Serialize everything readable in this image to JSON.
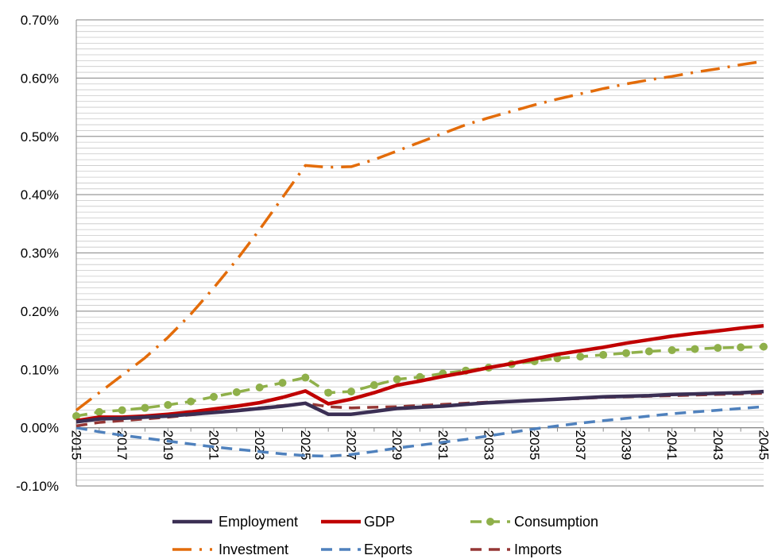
{
  "chart_data": {
    "type": "line",
    "title": "",
    "xlabel": "",
    "ylabel": "",
    "x": [
      2015,
      2016,
      2017,
      2018,
      2019,
      2020,
      2021,
      2022,
      2023,
      2024,
      2025,
      2026,
      2027,
      2028,
      2029,
      2030,
      2031,
      2032,
      2033,
      2034,
      2035,
      2036,
      2037,
      2038,
      2039,
      2040,
      2041,
      2042,
      2043,
      2044,
      2045
    ],
    "x_tick_labels": [
      "2015",
      "2017",
      "2019",
      "2021",
      "2023",
      "2025",
      "2027",
      "2029",
      "2031",
      "2033",
      "2035",
      "2037",
      "2039",
      "2041",
      "2043",
      "2045"
    ],
    "x_tick_values": [
      2015,
      2017,
      2019,
      2021,
      2023,
      2025,
      2027,
      2029,
      2031,
      2033,
      2035,
      2037,
      2039,
      2041,
      2043,
      2045
    ],
    "ylim": [
      -0.1,
      0.7
    ],
    "y_tick_values": [
      -0.1,
      0.0,
      0.1,
      0.2,
      0.3,
      0.4,
      0.5,
      0.6,
      0.7
    ],
    "y_tick_labels": [
      "-0.10%",
      "0.00%",
      "0.10%",
      "0.20%",
      "0.30%",
      "0.40%",
      "0.50%",
      "0.60%",
      "0.70%"
    ],
    "grid": true,
    "legend_position": "bottom",
    "series": [
      {
        "name": "Employment",
        "color": "#3b2f54",
        "style": "solid",
        "marker": "none",
        "values": [
          0.01,
          0.015,
          0.016,
          0.018,
          0.02,
          0.023,
          0.026,
          0.029,
          0.033,
          0.037,
          0.042,
          0.023,
          0.023,
          0.028,
          0.033,
          0.035,
          0.037,
          0.04,
          0.043,
          0.045,
          0.047,
          0.049,
          0.051,
          0.053,
          0.054,
          0.055,
          0.057,
          0.058,
          0.059,
          0.06,
          0.062
        ]
      },
      {
        "name": "GDP",
        "color": "#c00000",
        "style": "solid",
        "marker": "none",
        "values": [
          0.012,
          0.018,
          0.018,
          0.02,
          0.023,
          0.027,
          0.032,
          0.037,
          0.043,
          0.052,
          0.063,
          0.041,
          0.049,
          0.06,
          0.073,
          0.08,
          0.088,
          0.095,
          0.103,
          0.11,
          0.118,
          0.126,
          0.132,
          0.138,
          0.145,
          0.151,
          0.157,
          0.162,
          0.166,
          0.171,
          0.175
        ]
      },
      {
        "name": "Consumption",
        "color": "#8fb04a",
        "style": "dashed",
        "marker": "circle",
        "values": [
          0.02,
          0.027,
          0.03,
          0.034,
          0.039,
          0.045,
          0.053,
          0.061,
          0.069,
          0.077,
          0.086,
          0.06,
          0.062,
          0.073,
          0.083,
          0.087,
          0.093,
          0.098,
          0.103,
          0.109,
          0.114,
          0.119,
          0.122,
          0.125,
          0.128,
          0.131,
          0.133,
          0.135,
          0.137,
          0.138,
          0.139
        ]
      },
      {
        "name": "Investment",
        "color": "#e36c0a",
        "style": "dashdot",
        "marker": "none",
        "values": [
          0.03,
          0.06,
          0.09,
          0.12,
          0.155,
          0.195,
          0.24,
          0.288,
          0.34,
          0.395,
          0.45,
          0.447,
          0.448,
          0.46,
          0.475,
          0.49,
          0.505,
          0.52,
          0.532,
          0.543,
          0.554,
          0.564,
          0.573,
          0.582,
          0.59,
          0.597,
          0.603,
          0.61,
          0.616,
          0.623,
          0.629
        ]
      },
      {
        "name": "Exports",
        "color": "#4f81bd",
        "style": "dashed",
        "marker": "none",
        "values": [
          0.0,
          -0.007,
          -0.013,
          -0.018,
          -0.023,
          -0.028,
          -0.033,
          -0.037,
          -0.041,
          -0.045,
          -0.048,
          -0.049,
          -0.046,
          -0.041,
          -0.035,
          -0.03,
          -0.025,
          -0.02,
          -0.014,
          -0.008,
          -0.002,
          0.003,
          0.008,
          0.012,
          0.016,
          0.02,
          0.024,
          0.027,
          0.03,
          0.033,
          0.036
        ]
      },
      {
        "name": "Imports",
        "color": "#953735",
        "style": "dashed",
        "marker": "none",
        "values": [
          0.003,
          0.009,
          0.012,
          0.015,
          0.018,
          0.022,
          0.026,
          0.03,
          0.034,
          0.038,
          0.042,
          0.036,
          0.034,
          0.035,
          0.036,
          0.038,
          0.04,
          0.042,
          0.044,
          0.045,
          0.047,
          0.049,
          0.05,
          0.052,
          0.053,
          0.054,
          0.055,
          0.056,
          0.057,
          0.058,
          0.059
        ]
      }
    ]
  }
}
